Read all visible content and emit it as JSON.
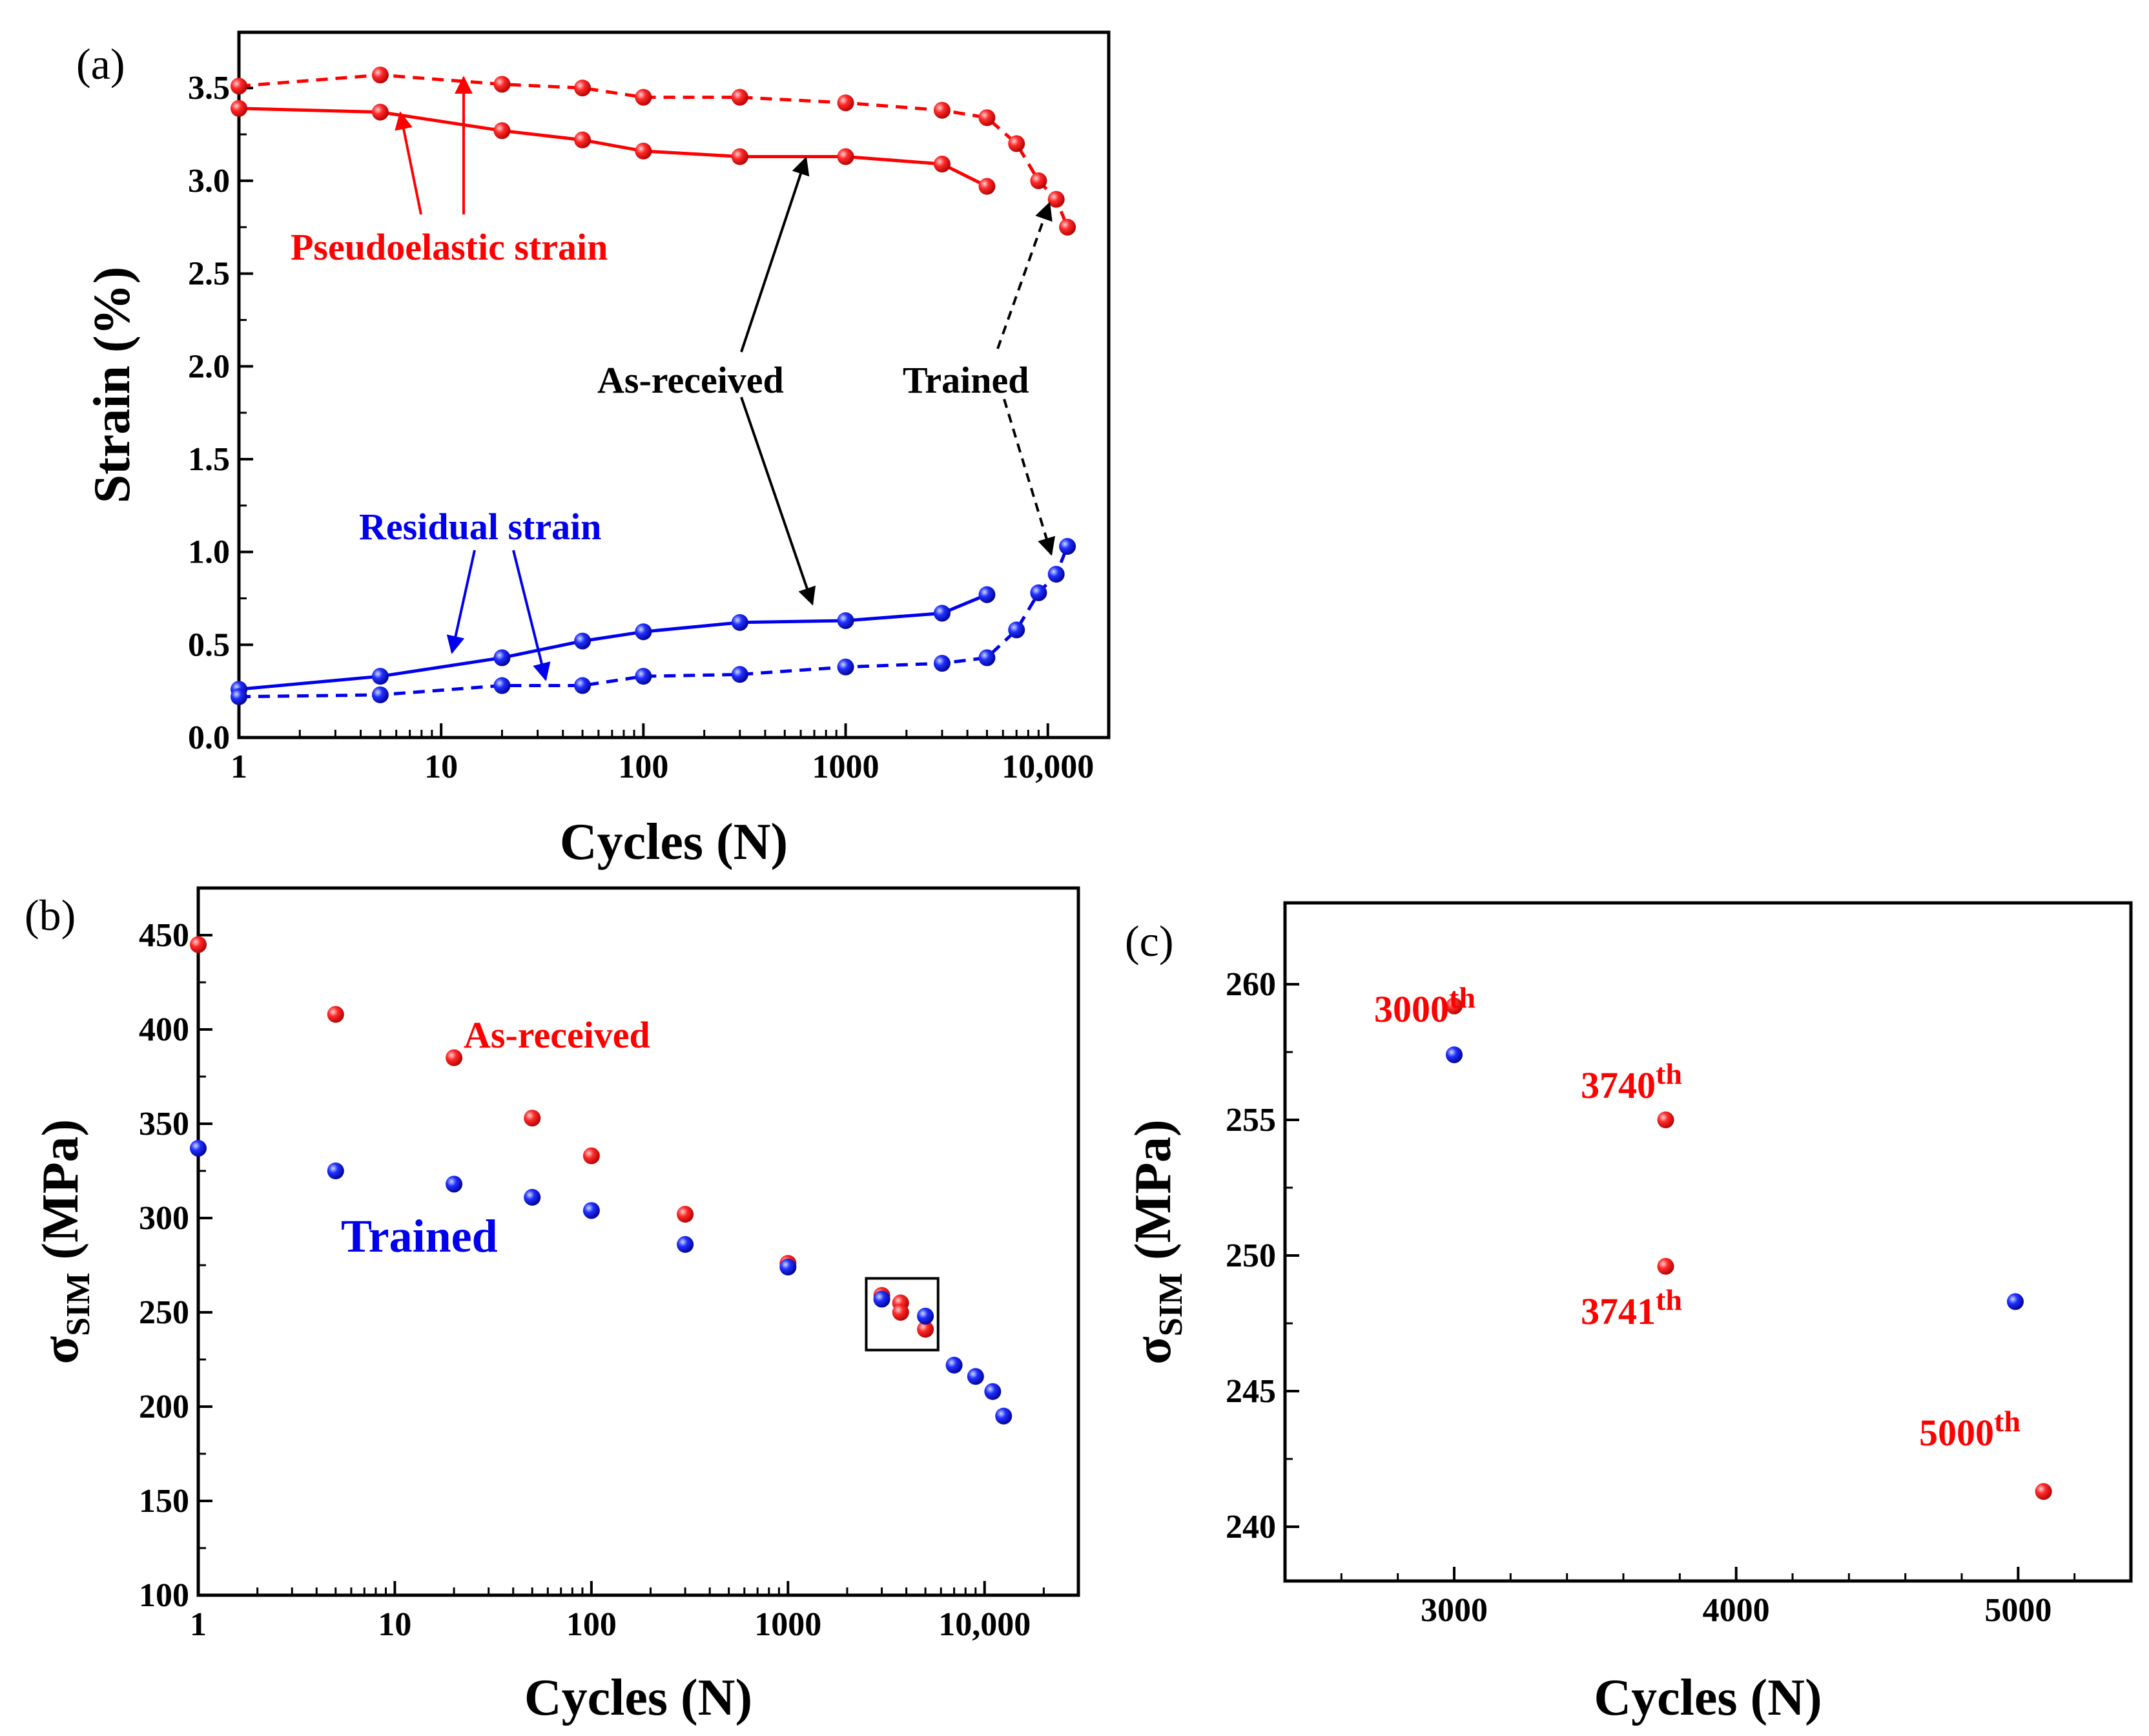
{
  "colors": {
    "red": "#ff0000",
    "blue": "#0000ee",
    "black": "#000000"
  },
  "chart_data": [
    {
      "panel": "(a)",
      "type": "line",
      "x_scale": "log",
      "xlabel": "Cycles (N)",
      "ylabel": "Strain (%)",
      "xlim": [
        1,
        20000
      ],
      "ylim": [
        0,
        3.8
      ],
      "x_ticks": [
        1,
        10,
        100,
        1000,
        10000
      ],
      "x_tick_labels": [
        "1",
        "10",
        "100",
        "1000",
        "10,000"
      ],
      "y_ticks": [
        0,
        0.5,
        1,
        1.5,
        2,
        2.5,
        3,
        3.5
      ],
      "y_tick_labels": [
        "0.0",
        "0.5",
        "1.0",
        "1.5",
        "2.0",
        "2.5",
        "3.0",
        "3.5"
      ],
      "series": [
        {
          "name": "Pseudoelastic strain (As-received)",
          "color": "#ff0000",
          "dash": "solid",
          "x": [
            1,
            5,
            20,
            50,
            100,
            300,
            1000,
            3000,
            5000
          ],
          "y": [
            3.39,
            3.37,
            3.27,
            3.22,
            3.16,
            3.13,
            3.13,
            3.09,
            2.97
          ]
        },
        {
          "name": "Pseudoelastic strain (Trained)",
          "color": "#ff0000",
          "dash": "dashed",
          "x": [
            1,
            5,
            20,
            50,
            100,
            300,
            1000,
            3000,
            5000,
            7000,
            9000,
            11000,
            12500
          ],
          "y": [
            3.51,
            3.57,
            3.52,
            3.5,
            3.45,
            3.45,
            3.42,
            3.38,
            3.34,
            3.2,
            3.0,
            2.9,
            2.75
          ]
        },
        {
          "name": "Residual strain (As-received)",
          "color": "#0000ee",
          "dash": "solid",
          "x": [
            1,
            5,
            20,
            50,
            100,
            300,
            1000,
            3000,
            5000
          ],
          "y": [
            0.26,
            0.33,
            0.43,
            0.52,
            0.57,
            0.62,
            0.63,
            0.67,
            0.77
          ]
        },
        {
          "name": "Residual strain (Trained)",
          "color": "#0000ee",
          "dash": "dashed",
          "x": [
            1,
            5,
            20,
            50,
            100,
            300,
            1000,
            3000,
            5000,
            7000,
            9000,
            11000,
            12500
          ],
          "y": [
            0.22,
            0.23,
            0.28,
            0.28,
            0.33,
            0.34,
            0.38,
            0.4,
            0.43,
            0.58,
            0.78,
            0.88,
            1.03
          ]
        }
      ],
      "annotations": {
        "pseudoelastic": "Pseudoelastic strain",
        "residual": "Residual strain",
        "as_received": "As-received",
        "trained": "Trained"
      }
    },
    {
      "panel": "(b)",
      "type": "scatter",
      "x_scale": "log",
      "xlabel": "Cycles (N)",
      "ylabel_main": "σ",
      "ylabel_sub": "SIM",
      "ylabel_rest": " (MPa)",
      "xlim": [
        1,
        30000
      ],
      "ylim": [
        100,
        475
      ],
      "x_ticks": [
        1,
        10,
        100,
        1000,
        10000
      ],
      "x_tick_labels": [
        "1",
        "10",
        "100",
        "1000",
        "10,000"
      ],
      "y_ticks": [
        100,
        150,
        200,
        250,
        300,
        350,
        400,
        450
      ],
      "y_tick_labels": [
        "100",
        "150",
        "200",
        "250",
        "300",
        "350",
        "400",
        "450"
      ],
      "series": [
        {
          "name": "As-received",
          "color": "#ff0000",
          "x": [
            1,
            5,
            20,
            50,
            100,
            300,
            1000,
            3000,
            3740,
            3741,
            5000
          ],
          "y": [
            445,
            408,
            385,
            353,
            333,
            302,
            276,
            259,
            255,
            250,
            241
          ]
        },
        {
          "name": "Trained",
          "color": "#0000ee",
          "x": [
            1,
            5,
            20,
            50,
            100,
            300,
            1000,
            3000,
            5000,
            7000,
            9000,
            11000,
            12500
          ],
          "y": [
            337,
            325,
            318,
            311,
            304,
            286,
            274,
            257,
            248,
            222,
            216,
            208,
            195
          ]
        }
      ],
      "highlight_box": {
        "x_range": [
          2500,
          5800
        ],
        "y_range": [
          230,
          268
        ]
      },
      "annotations": {
        "as_received": "As-received",
        "trained": "Trained"
      }
    },
    {
      "panel": "(c)",
      "type": "scatter",
      "x_scale": "linear",
      "xlabel": "Cycles (N)",
      "ylabel_main": "σ",
      "ylabel_sub": "SIM",
      "ylabel_rest": " (MPa)",
      "xlim": [
        2400,
        5400
      ],
      "ylim": [
        238,
        263
      ],
      "x_ticks": [
        3000,
        4000,
        5000
      ],
      "x_tick_labels": [
        "3000",
        "4000",
        "5000"
      ],
      "y_ticks": [
        240,
        245,
        250,
        255,
        260
      ],
      "y_tick_labels": [
        "240",
        "245",
        "250",
        "255",
        "260"
      ],
      "series": [
        {
          "name": "As-received",
          "color": "#ff0000",
          "x": [
            3000,
            3750,
            3750,
            5090
          ],
          "y": [
            259.2,
            255.0,
            249.6,
            241.3
          ]
        },
        {
          "name": "Trained",
          "color": "#0000ee",
          "x": [
            3000,
            4990
          ],
          "y": [
            257.4,
            248.3
          ]
        }
      ],
      "annotations": [
        {
          "base": "3000",
          "sup": "th"
        },
        {
          "base": "3740",
          "sup": "th"
        },
        {
          "base": "3741",
          "sup": "th"
        },
        {
          "base": "5000",
          "sup": "th"
        }
      ]
    }
  ]
}
